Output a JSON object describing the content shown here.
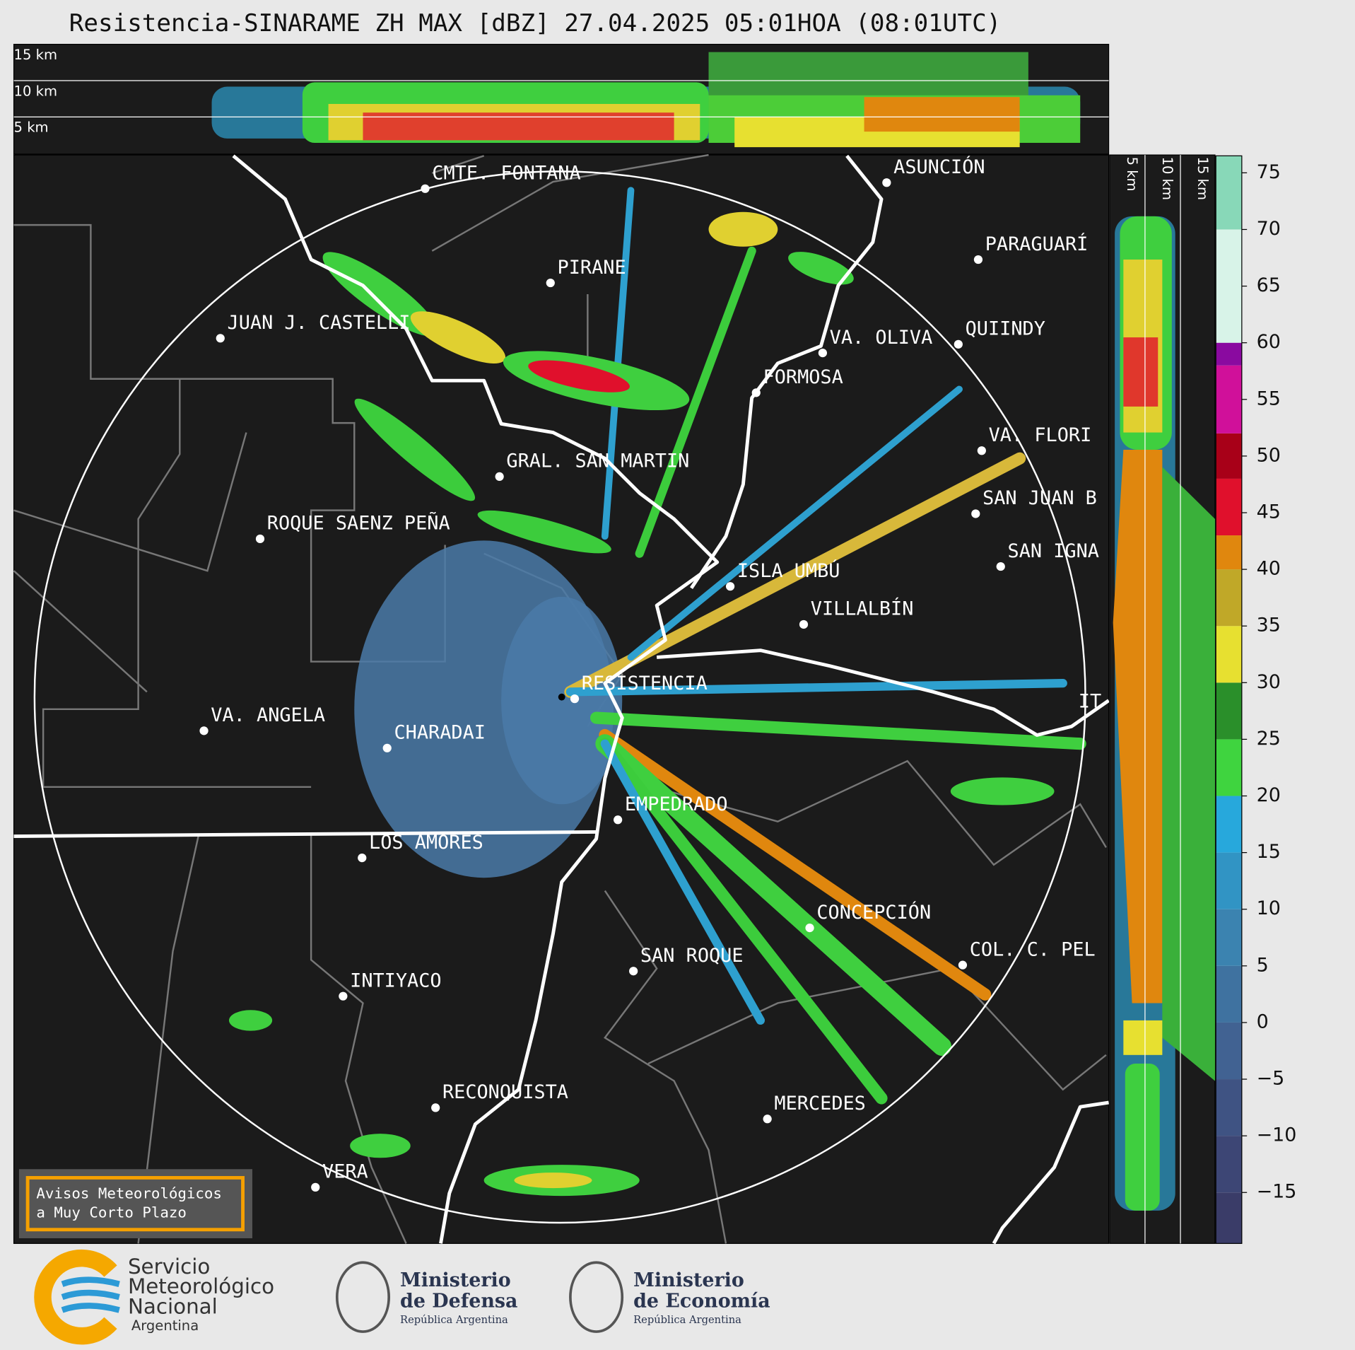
{
  "title": "Resistencia-SINARAME ZH MAX [dBZ] 27.04.2025 05:01HOA (08:01UTC)",
  "top_panel": {
    "height_labels": [
      "15 km",
      "10 km",
      "5 km"
    ]
  },
  "side_panel": {
    "height_labels": [
      "5 km",
      "10 km",
      "15 km"
    ]
  },
  "cities": [
    "CMTE. FONTANA",
    "PIRANE",
    "JUAN J. CASTELLI",
    "VA. OLIVA",
    "QUIINDY",
    "FORMOSA",
    "ASUNCIÓN",
    "PARAGUARÍ",
    "VA. FLORI",
    "SAN JUAN B",
    "SAN IGNA",
    "GRAL. SAN MARTIN",
    "ROQUE SAENZ PEÑA",
    "ISLA UMBÚ",
    "VILLALBÍN",
    "RESISTENCIA",
    "VA. ANGELA",
    "CHARADAI",
    "IT",
    "EMPEDRADO",
    "LOS AMORES",
    "CONCEPCIÓN",
    "COL. C. PEL",
    "SAN ROQUE",
    "INTIYACO",
    "RECONQUISTA",
    "MERCEDES",
    "VERA"
  ],
  "colorbar": {
    "lim": [
      -19.5,
      76.5
    ],
    "ticks": [
      75,
      70,
      65,
      60,
      55,
      50,
      45,
      40,
      35,
      30,
      25,
      20,
      15,
      10,
      5,
      0,
      {
        "value": -5,
        "label": "−5"
      },
      {
        "value": -10,
        "label": "−10"
      },
      {
        "value": -15,
        "label": "−15"
      }
    ],
    "bands": [
      {
        "from": -19.5,
        "to": -15,
        "color": "#3a3c68"
      },
      {
        "from": -15,
        "to": -10,
        "color": "#3d4675"
      },
      {
        "from": -10,
        "to": -5,
        "color": "#3f5383"
      },
      {
        "from": -5,
        "to": 0,
        "color": "#416292"
      },
      {
        "from": 0,
        "to": 5,
        "color": "#3f72a0"
      },
      {
        "from": 5,
        "to": 10,
        "color": "#3b83b0"
      },
      {
        "from": 10,
        "to": 15,
        "color": "#3194c4"
      },
      {
        "from": 15,
        "to": 20,
        "color": "#27a8dc"
      },
      {
        "from": 20,
        "to": 25,
        "color": "#3fd43f"
      },
      {
        "from": 25,
        "to": 30,
        "color": "#2a8f2a"
      },
      {
        "from": 30,
        "to": 35,
        "color": "#e7e030"
      },
      {
        "from": 35,
        "to": 40,
        "color": "#c0a828"
      },
      {
        "from": 40,
        "to": 43,
        "color": "#e0870e"
      },
      {
        "from": 43,
        "to": 48,
        "color": "#e0102c"
      },
      {
        "from": 48,
        "to": 52,
        "color": "#a80018"
      },
      {
        "from": 52,
        "to": 58,
        "color": "#d0109a"
      },
      {
        "from": 58,
        "to": 60,
        "color": "#8a0aa0"
      },
      {
        "from": 60,
        "to": 70,
        "color": "#d8f3e8"
      },
      {
        "from": 70,
        "to": 76.5,
        "color": "#88d8b8"
      }
    ]
  },
  "notice": [
    "Avisos Meteorológicos",
    "a Muy Corto Plazo"
  ],
  "logos": {
    "smn": [
      "Servicio",
      "Meteorológico",
      "Nacional",
      "Argentina"
    ],
    "defensa": [
      "Ministerio",
      "de Defensa",
      "República Argentina"
    ],
    "economia": [
      "Ministerio",
      "de Economía",
      "República Argentina"
    ]
  }
}
